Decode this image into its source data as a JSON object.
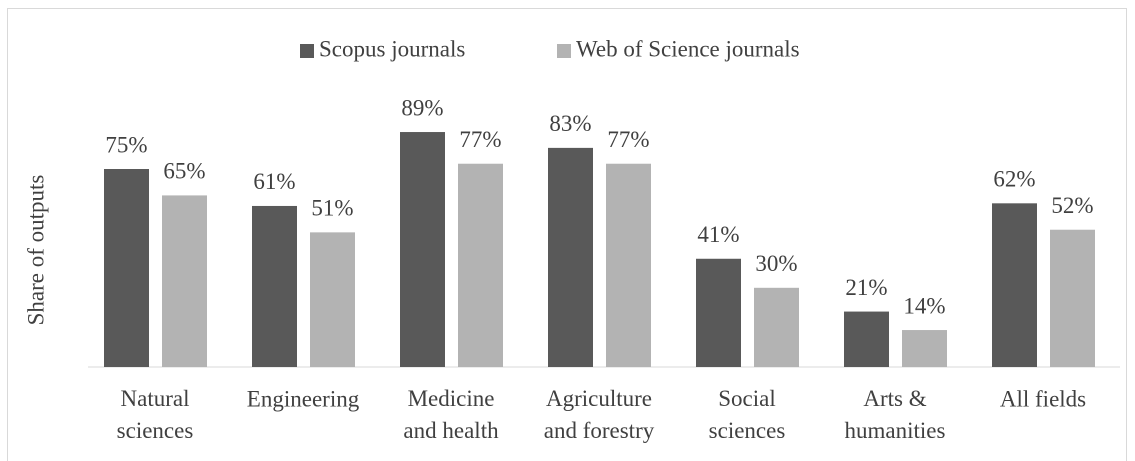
{
  "chart_data": {
    "type": "bar",
    "y_label": "Share of outputs",
    "categories": [
      "Natural\nsciences",
      "Engineering",
      "Medicine\nand health",
      "Agriculture\nand forestry",
      "Social\nsciences",
      "Arts &\nhumanities",
      "All fields"
    ],
    "series": [
      {
        "name": "Scopus journals",
        "color": "#595959",
        "values": [
          75,
          61,
          89,
          83,
          41,
          21,
          62
        ],
        "value_labels": [
          "75%",
          "61%",
          "89%",
          "83%",
          "41%",
          "21%",
          "62%"
        ]
      },
      {
        "name": "Web of Science journals",
        "color": "#b3b3b3",
        "values": [
          65,
          51,
          77,
          77,
          30,
          14,
          52
        ],
        "value_labels": [
          "65%",
          "51%",
          "77%",
          "77%",
          "30%",
          "14%",
          "52%"
        ]
      }
    ],
    "ylim": [
      0,
      100
    ],
    "legend": "top"
  }
}
